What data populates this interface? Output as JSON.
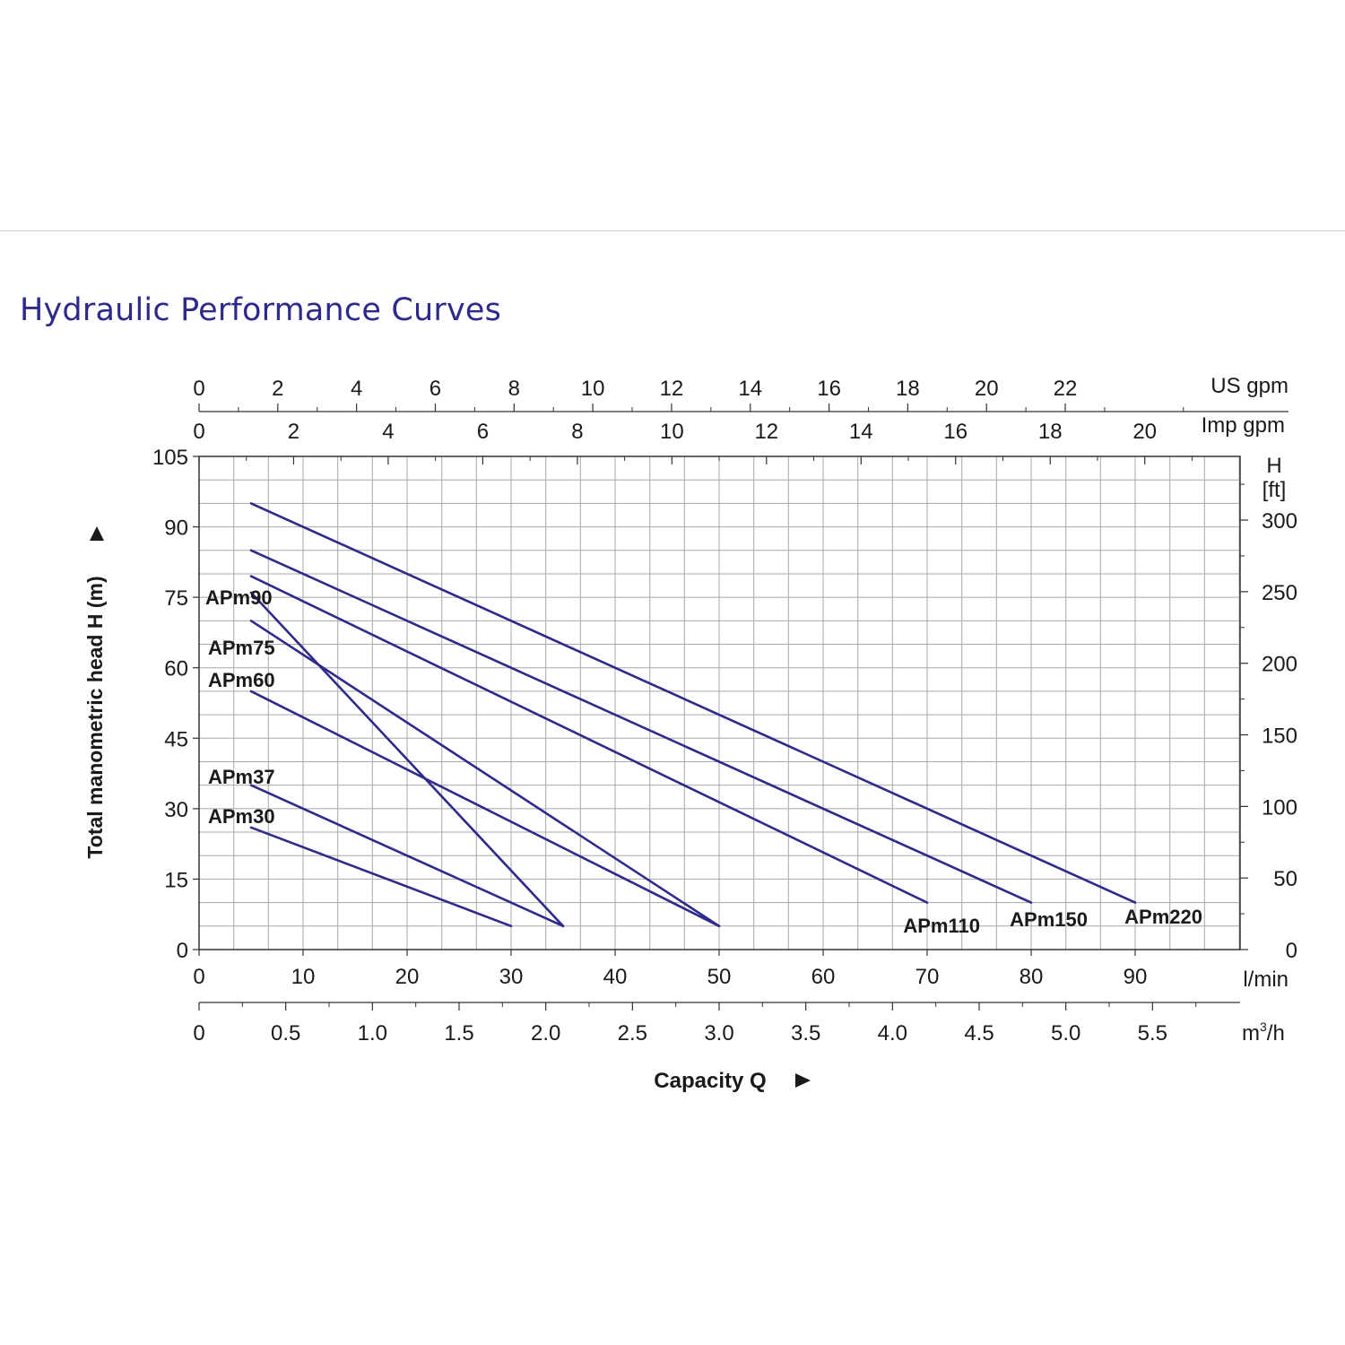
{
  "page": {
    "title": "Hydraulic Performance Curves"
  },
  "chart_data": {
    "type": "line",
    "title": "",
    "xlabel": "Capacity Q",
    "ylabel": "Total manometric head H (m)",
    "xlim": [
      0,
      100
    ],
    "ylim": [
      0,
      105
    ],
    "grid": true,
    "line_color": "#2e2a8c",
    "x_units": "l/min",
    "x_ticks": [
      "0",
      "10",
      "20",
      "30",
      "40",
      "50",
      "60",
      "70",
      "80",
      "90"
    ],
    "y_ticks": [
      "0",
      "15",
      "30",
      "45",
      "60",
      "75",
      "90",
      "105"
    ],
    "right_axis": {
      "label_lines": [
        "H",
        "[ft]"
      ],
      "ticks": [
        "0",
        "50",
        "100",
        "150",
        "200",
        "250",
        "300"
      ],
      "tick_values": [
        0,
        50,
        100,
        150,
        200,
        250,
        300
      ]
    },
    "top_axis_us": {
      "label": "US gpm",
      "ticks": [
        "0",
        "2",
        "4",
        "6",
        "8",
        "10",
        "12",
        "14",
        "16",
        "18",
        "20",
        "22"
      ],
      "tick_values": [
        0,
        2,
        4,
        6,
        8,
        10,
        12,
        14,
        16,
        18,
        20,
        22
      ]
    },
    "top_axis_imp": {
      "label": "Imp gpm",
      "ticks": [
        "0",
        "2",
        "4",
        "6",
        "8",
        "10",
        "12",
        "14",
        "16",
        "18",
        "20"
      ],
      "tick_values": [
        0,
        2,
        4,
        6,
        8,
        10,
        12,
        14,
        16,
        18,
        20
      ]
    },
    "bottom_axis_m3h": {
      "label_base": "m",
      "label_sup": "3",
      "label_tail": "/h",
      "ticks": [
        "0",
        "0.5",
        "1.0",
        "1.5",
        "2.0",
        "2.5",
        "3.0",
        "3.5",
        "4.0",
        "4.5",
        "5.0",
        "5.5"
      ],
      "tick_values": [
        0,
        0.5,
        1.0,
        1.5,
        2.0,
        2.5,
        3.0,
        3.5,
        4.0,
        4.5,
        5.0,
        5.5
      ]
    },
    "series": [
      {
        "name": "APm30",
        "x": [
          5,
          30
        ],
        "y": [
          26,
          5
        ],
        "label_anchor": "start"
      },
      {
        "name": "APm37",
        "x": [
          5,
          35
        ],
        "y": [
          35,
          5
        ],
        "label_anchor": "start"
      },
      {
        "name": "APm60",
        "x": [
          5,
          50
        ],
        "y": [
          55,
          5
        ],
        "label_anchor": "start"
      },
      {
        "name": "APm75",
        "x": [
          5,
          50
        ],
        "y": [
          70,
          5
        ],
        "label_anchor": "start"
      },
      {
        "name": "APm90",
        "x": [
          5,
          35
        ],
        "y": [
          76,
          5
        ],
        "label_anchor": "start"
      },
      {
        "name": "APm110",
        "x": [
          5,
          70
        ],
        "y": [
          79.5,
          10
        ],
        "label_anchor": "end"
      },
      {
        "name": "APm150",
        "x": [
          5,
          80
        ],
        "y": [
          85,
          10
        ],
        "label_anchor": "end"
      },
      {
        "name": "APm220",
        "x": [
          5,
          90
        ],
        "y": [
          95,
          10
        ],
        "label_anchor": "end"
      }
    ]
  }
}
